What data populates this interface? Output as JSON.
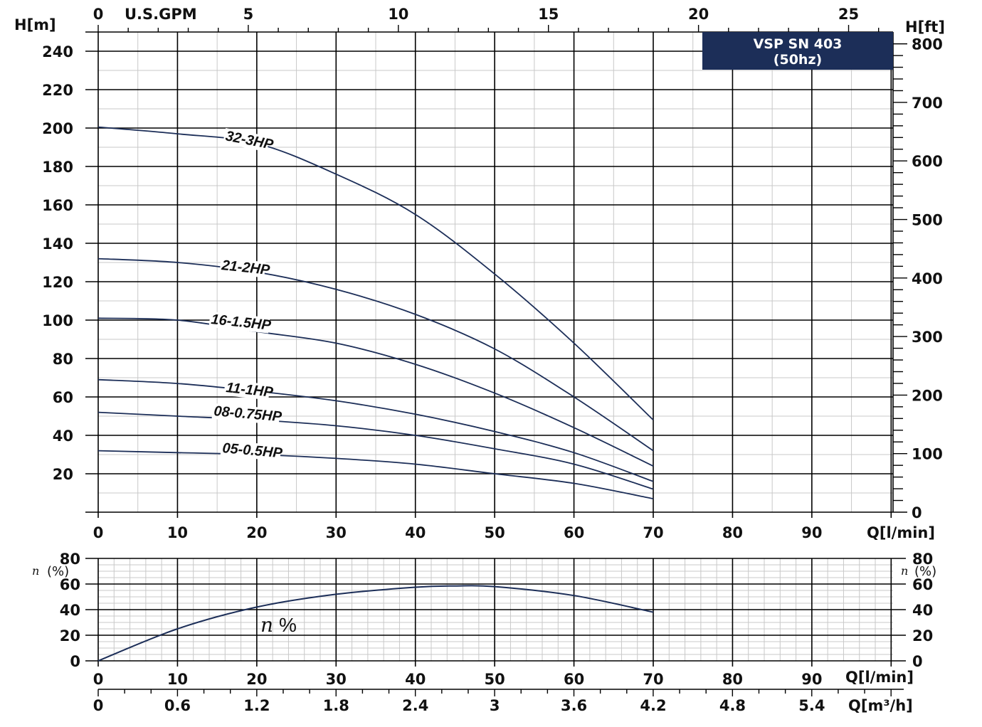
{
  "title_box": {
    "line1": "VSP SN 403",
    "line2": "(50hz)",
    "bg": "#1c2e58",
    "fg": "#ffffff"
  },
  "colors": {
    "curve": "#1c2e58",
    "major_grid": "#000000",
    "minor_grid": "#c8c8c8"
  },
  "chart_data": [
    {
      "type": "line",
      "title": "VSP SN 403 (50hz)",
      "xlabel": "Q[l/min]",
      "ylabel": "H[m]",
      "y2label": "H[ft]",
      "x2label": "U.S.GPM",
      "xlim": [
        0,
        100
      ],
      "ylim": [
        0,
        250
      ],
      "x_ticks": [
        0,
        10,
        20,
        30,
        40,
        50,
        60,
        70,
        80,
        90
      ],
      "y_ticks": [
        20,
        40,
        60,
        80,
        100,
        120,
        140,
        160,
        180,
        200,
        220,
        240
      ],
      "y2_ticks": [
        0,
        100,
        200,
        300,
        400,
        500,
        600,
        700,
        800
      ],
      "x2_ticks": [
        0,
        5,
        10,
        15,
        20,
        25
      ],
      "grid": true,
      "x": [
        0,
        10,
        20,
        30,
        40,
        50,
        60,
        70
      ],
      "series": [
        {
          "name": "32-3HP",
          "values": [
            200.5,
            197,
            192,
            176,
            155,
            124,
            88,
            48
          ]
        },
        {
          "name": "21-2HP",
          "values": [
            132,
            130,
            125,
            116,
            103,
            85,
            60,
            32
          ]
        },
        {
          "name": "16-1.5HP",
          "values": [
            101,
            100,
            94,
            88,
            77,
            62,
            44,
            24
          ]
        },
        {
          "name": "11-1HP",
          "values": [
            69,
            67,
            63,
            58,
            51,
            42,
            31,
            16
          ]
        },
        {
          "name": "08-0.75HP",
          "values": [
            52,
            50,
            48,
            45,
            40,
            33,
            25,
            12
          ]
        },
        {
          "name": "05-0.5HP",
          "values": [
            32,
            31,
            30,
            28,
            25,
            20,
            15,
            7
          ]
        }
      ]
    },
    {
      "type": "line",
      "title": "",
      "xlabel": "Q[l/min]",
      "x2label": "Q[m³/h]",
      "ylabel": "η (%)",
      "xlim": [
        0,
        100
      ],
      "ylim": [
        0,
        80
      ],
      "x_ticks": [
        0,
        10,
        20,
        30,
        40,
        50,
        60,
        70,
        80,
        90
      ],
      "x2_ticks": [
        "0",
        "0.6",
        "1.2",
        "1.8",
        "2.4",
        "3",
        "3.6",
        "4.2",
        "4.8",
        "5.4"
      ],
      "y_ticks": [
        0,
        20,
        40,
        60,
        80
      ],
      "grid": true,
      "x": [
        0,
        10,
        20,
        30,
        40,
        45,
        50,
        60,
        70
      ],
      "series": [
        {
          "name": "η %",
          "values": [
            0,
            25,
            42,
            52,
            57.5,
            58.5,
            58,
            51,
            38
          ]
        }
      ]
    }
  ],
  "labels": {
    "h_m": "H[m]",
    "h_ft": "H[ft]",
    "gpm": "U.S.GPM",
    "q_lmin": "Q[l/min]",
    "q_m3h": "Q[m³/h]",
    "eta_axis": "(%)",
    "eta_symbol": "n",
    "eta_curve_label": "%"
  }
}
